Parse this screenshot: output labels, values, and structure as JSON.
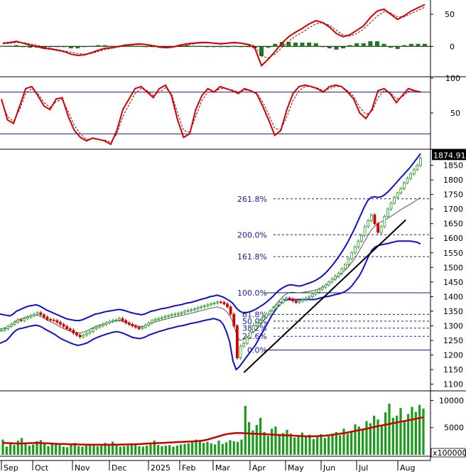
{
  "chart_data": [
    {
      "type": "line",
      "panel": "momentum oscillator (MACD-style) with histogram",
      "y_ticks": [
        "50",
        "0"
      ],
      "ylim": [
        -45,
        70
      ],
      "zero_line": 0,
      "colors": {
        "line": "#d40000",
        "signal": "#8b0000",
        "hist_pos": "#1e7a1e",
        "hist_neg": "#1e7a1e"
      },
      "series": [
        {
          "values": [
            5,
            6,
            8,
            5,
            2,
            0,
            -3,
            -4,
            -6,
            -8,
            -12,
            -14,
            -13,
            -10,
            -6,
            -3,
            -2,
            0,
            2,
            3,
            4,
            3,
            1,
            -1,
            -2,
            -1,
            2,
            4,
            5,
            6,
            6,
            5,
            4,
            5,
            6,
            5,
            3,
            -2,
            -30,
            -20,
            -8,
            5,
            15,
            22,
            28,
            35,
            40,
            37,
            30,
            20,
            15,
            18,
            25,
            32,
            45,
            55,
            58,
            50,
            42,
            48,
            55,
            60,
            65
          ]
        },
        {
          "values": [
            4,
            5,
            6,
            6,
            4,
            2,
            -1,
            -3,
            -5,
            -7,
            -9,
            -11,
            -12,
            -11,
            -8,
            -5,
            -3,
            -1,
            1,
            2,
            3,
            3,
            2,
            0,
            -1,
            -1,
            0,
            2,
            4,
            5,
            6,
            5,
            5,
            5,
            5,
            5,
            4,
            1,
            -15,
            -18,
            -12,
            -2,
            8,
            16,
            22,
            29,
            35,
            37,
            33,
            25,
            18,
            16,
            20,
            27,
            37,
            47,
            54,
            52,
            46,
            46,
            51,
            56,
            61
          ]
        }
      ],
      "histogram": [
        1,
        1,
        2,
        -1,
        -2,
        -2,
        -2,
        -1,
        -1,
        -1,
        -3,
        -3,
        -1,
        1,
        2,
        2,
        1,
        1,
        1,
        1,
        1,
        0,
        -1,
        -1,
        -1,
        0,
        2,
        2,
        1,
        1,
        0,
        0,
        -1,
        0,
        1,
        0,
        -1,
        -3,
        -15,
        -2,
        4,
        7,
        7,
        6,
        6,
        6,
        5,
        0,
        -3,
        -5,
        -3,
        2,
        5,
        5,
        8,
        8,
        4,
        -2,
        -4,
        2,
        4,
        4,
        4
      ]
    },
    {
      "type": "line",
      "panel": "stochastic / RSI oscillator",
      "y_ticks": [
        "100",
        "50"
      ],
      "ylim": [
        0,
        100
      ],
      "levels": [
        80,
        20
      ],
      "series": [
        {
          "values": [
            70,
            40,
            35,
            60,
            85,
            88,
            75,
            60,
            55,
            70,
            72,
            45,
            25,
            15,
            10,
            14,
            12,
            10,
            5,
            25,
            55,
            70,
            85,
            88,
            80,
            72,
            85,
            90,
            75,
            40,
            15,
            20,
            55,
            75,
            85,
            80,
            88,
            85,
            82,
            78,
            85,
            82,
            78,
            60,
            40,
            18,
            25,
            55,
            78,
            88,
            90,
            88,
            85,
            80,
            88,
            90,
            88,
            80,
            70,
            50,
            42,
            55,
            82,
            85,
            78,
            65,
            75,
            85,
            82,
            80
          ]
        },
        {
          "values": [
            68,
            45,
            38,
            55,
            78,
            85,
            78,
            65,
            58,
            66,
            70,
            52,
            32,
            20,
            12,
            13,
            12,
            11,
            8,
            20,
            45,
            62,
            78,
            85,
            82,
            75,
            80,
            86,
            78,
            50,
            25,
            22,
            45,
            68,
            80,
            80,
            85,
            85,
            83,
            80,
            83,
            82,
            79,
            66,
            48,
            28,
            26,
            45,
            68,
            82,
            88,
            88,
            86,
            82,
            85,
            88,
            88,
            82,
            74,
            58,
            48,
            52,
            72,
            82,
            80,
            70,
            73,
            81,
            82,
            81
          ]
        }
      ]
    },
    {
      "type": "line",
      "panel": "price (candlesticks) with Bollinger bands, trendline and Fibonacci levels",
      "x_tick_labels": [
        "Sep",
        "Oct",
        "Nov",
        "Dec",
        "2025",
        "Feb",
        "Mar",
        "Apr",
        "May",
        "Jun",
        "Jul",
        "Aug"
      ],
      "y_ticks": [
        "1850",
        "1800",
        "1750",
        "1700",
        "1650",
        "1600",
        "1550",
        "1500",
        "1450",
        "1400",
        "1350",
        "1300",
        "1250",
        "1200",
        "1150",
        "1100"
      ],
      "ylim": [
        1082,
        1900
      ],
      "last_price_label": "1874.910",
      "fibonacci_levels": [
        {
          "label": "261.8%",
          "value": 1735
        },
        {
          "label": "200.0%",
          "value": 1612
        },
        {
          "label": "161.8%",
          "value": 1537
        },
        {
          "label": "100.0%",
          "value": 1413
        },
        {
          "label": "61.8%",
          "value": 1339
        },
        {
          "label": "50.0%",
          "value": 1316
        },
        {
          "label": "38.2%",
          "value": 1292
        },
        {
          "label": "23.6%",
          "value": 1264
        },
        {
          "label": "0.0%",
          "value": 1217
        }
      ],
      "trendline": {
        "from": {
          "x": 0.58,
          "y": 1140
        },
        "to": {
          "x": 0.965,
          "y": 1663
        }
      },
      "close": [
        1285,
        1290,
        1298,
        1305,
        1312,
        1320,
        1318,
        1325,
        1330,
        1335,
        1340,
        1345,
        1338,
        1330,
        1322,
        1320,
        1318,
        1312,
        1305,
        1298,
        1290,
        1285,
        1275,
        1268,
        1262,
        1268,
        1275,
        1280,
        1290,
        1295,
        1300,
        1305,
        1310,
        1315,
        1318,
        1320,
        1325,
        1318,
        1310,
        1305,
        1300,
        1295,
        1290,
        1295,
        1302,
        1310,
        1318,
        1322,
        1325,
        1328,
        1332,
        1335,
        1338,
        1340,
        1342,
        1345,
        1350,
        1352,
        1355,
        1358,
        1362,
        1365,
        1368,
        1372,
        1375,
        1378,
        1382,
        1380,
        1375,
        1365,
        1340,
        1300,
        1190,
        1230,
        1240,
        1260,
        1280,
        1300,
        1310,
        1320,
        1330,
        1340,
        1350,
        1362,
        1372,
        1380,
        1390,
        1395,
        1392,
        1385,
        1380,
        1385,
        1390,
        1395,
        1400,
        1408,
        1415,
        1425,
        1432,
        1440,
        1450,
        1460,
        1470,
        1480,
        1495,
        1510,
        1530,
        1550,
        1570,
        1590,
        1610,
        1640,
        1660,
        1680,
        1650,
        1620,
        1640,
        1675,
        1700,
        1720,
        1740,
        1755,
        1770,
        1790,
        1805,
        1820,
        1835,
        1850,
        1875
      ],
      "upper_band": [
        1340,
        1338,
        1336,
        1334,
        1340,
        1350,
        1355,
        1360,
        1365,
        1368,
        1370,
        1372,
        1368,
        1362,
        1355,
        1350,
        1345,
        1340,
        1335,
        1330,
        1325,
        1322,
        1320,
        1318,
        1318,
        1320,
        1325,
        1330,
        1335,
        1340,
        1342,
        1345,
        1348,
        1350,
        1352,
        1354,
        1356,
        1355,
        1352,
        1348,
        1345,
        1342,
        1340,
        1338,
        1340,
        1345,
        1350,
        1352,
        1355,
        1358,
        1360,
        1362,
        1365,
        1368,
        1370,
        1372,
        1375,
        1378,
        1380,
        1383,
        1386,
        1390,
        1393,
        1396,
        1400,
        1402,
        1405,
        1402,
        1398,
        1392,
        1385,
        1375,
        1360,
        1350,
        1345,
        1345,
        1348,
        1352,
        1358,
        1365,
        1372,
        1380,
        1390,
        1400,
        1412,
        1422,
        1430,
        1436,
        1440,
        1440,
        1438,
        1436,
        1438,
        1442,
        1446,
        1450,
        1455,
        1462,
        1470,
        1480,
        1492,
        1505,
        1520,
        1535,
        1552,
        1570,
        1590,
        1612,
        1635,
        1660,
        1685,
        1710,
        1730,
        1740,
        1742,
        1740,
        1742,
        1748,
        1758,
        1770,
        1782,
        1795,
        1808,
        1820,
        1832,
        1845,
        1860,
        1875,
        1890
      ],
      "lower_band": [
        1240,
        1245,
        1250,
        1262,
        1275,
        1285,
        1290,
        1292,
        1295,
        1298,
        1300,
        1302,
        1300,
        1295,
        1288,
        1282,
        1276,
        1270,
        1262,
        1255,
        1250,
        1245,
        1240,
        1236,
        1233,
        1235,
        1238,
        1242,
        1248,
        1255,
        1260,
        1264,
        1268,
        1272,
        1275,
        1278,
        1280,
        1278,
        1275,
        1270,
        1265,
        1260,
        1258,
        1256,
        1258,
        1262,
        1268,
        1272,
        1276,
        1280,
        1283,
        1286,
        1290,
        1292,
        1295,
        1298,
        1300,
        1302,
        1305,
        1308,
        1310,
        1312,
        1315,
        1318,
        1320,
        1322,
        1325,
        1322,
        1318,
        1305,
        1280,
        1245,
        1180,
        1150,
        1160,
        1175,
        1190,
        1205,
        1220,
        1235,
        1255,
        1275,
        1295,
        1315,
        1335,
        1352,
        1368,
        1380,
        1388,
        1390,
        1390,
        1390,
        1390,
        1390,
        1390,
        1390,
        1390,
        1390,
        1392,
        1395,
        1398,
        1400,
        1402,
        1405,
        1408,
        1410,
        1414,
        1420,
        1428,
        1440,
        1455,
        1470,
        1490,
        1515,
        1540,
        1560,
        1570,
        1575,
        1578,
        1580,
        1582,
        1585,
        1588,
        1590,
        1590,
        1590,
        1590,
        1590,
        1588,
        1586,
        1580
      ]
    },
    {
      "type": "bar",
      "panel": "volume",
      "y_ticks": [
        "10000",
        "5000"
      ],
      "unit_label": "x100000",
      "ylim": [
        0,
        11500
      ],
      "ma_color": "#cc0000",
      "values": [
        2800,
        1500,
        2200,
        1800,
        2600,
        3100,
        2000,
        1700,
        1900,
        2500,
        2700,
        2300,
        1600,
        2000,
        2100,
        1800,
        1500,
        1400,
        1900,
        2200,
        1600,
        1500,
        1700,
        1800,
        2000,
        1600,
        1700,
        2200,
        1900,
        2400,
        1800,
        1500,
        1600,
        1700,
        1900,
        2100,
        1600,
        1500,
        1700,
        1900,
        2600,
        1800,
        1600,
        1700,
        1800,
        1500,
        1700,
        1900,
        2000,
        2100,
        2300,
        2800,
        2500,
        2200,
        2400,
        2100,
        1900,
        2600,
        2000,
        2300,
        2700,
        2500,
        2400,
        2800,
        9000,
        6000,
        4500,
        5500,
        6800,
        4200,
        3500,
        4800,
        5200,
        3800,
        4000,
        4600,
        3900,
        3200,
        3600,
        4100,
        3500,
        3700,
        2900,
        3300,
        3800,
        3100,
        3400,
        3900,
        4200,
        3600,
        4800,
        3900,
        4400,
        5600,
        5200,
        4700,
        6200,
        5800,
        7200,
        6500,
        5500,
        7800,
        9400,
        6800,
        7200,
        8600,
        6100,
        7500,
        8800,
        7900,
        9200,
        8500
      ],
      "ma_values": [
        2200,
        2150,
        2100,
        2080,
        2100,
        2150,
        2180,
        2150,
        2100,
        2050,
        2000,
        1980,
        1950,
        1920,
        1900,
        1880,
        1860,
        1850,
        1840,
        1850,
        1870,
        1880,
        1900,
        1920,
        1950,
        2000,
        2050,
        2100,
        2150,
        2200,
        2250,
        2300,
        2350,
        2400,
        2450,
        2500,
        2600,
        2800,
        3100,
        3400,
        3700,
        3900,
        4000,
        4000,
        3950,
        3900,
        3850,
        3800,
        3750,
        3700,
        3650,
        3600,
        3550,
        3500,
        3450,
        3400,
        3400,
        3450,
        3500,
        3600,
        3750,
        3900,
        4050,
        4250,
        4450,
        4650,
        4850,
        5100,
        5300,
        5500,
        5700,
        5900,
        6100,
        6300,
        6500,
        6700,
        6900
      ]
    }
  ]
}
